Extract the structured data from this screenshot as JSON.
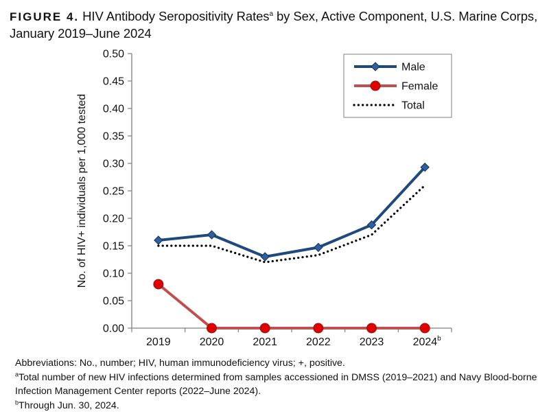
{
  "figure": {
    "label": "FIGURE 4.",
    "title": "HIV Antibody Seropositivity Rates",
    "title_sup": "a",
    "title_rest": " by Sex, Active Component, U.S. Marine Corps, January 2019–June 2024"
  },
  "chart_data": {
    "type": "line",
    "categories": [
      "2019",
      "2020",
      "2021",
      "2022",
      "2023",
      "2024"
    ],
    "category_sup": [
      "",
      "",
      "",
      "",
      "",
      "b"
    ],
    "ylabel": "No. of HIV+ individuals per 1,000 tested",
    "xlabel": "",
    "ylim": [
      0,
      0.5
    ],
    "yticks": [
      "0.00",
      "0.05",
      "0.10",
      "0.15",
      "0.20",
      "0.25",
      "0.30",
      "0.35",
      "0.40",
      "0.45",
      "0.50"
    ],
    "grid": false,
    "legend_position": "top-right",
    "series": [
      {
        "name": "Male",
        "values": [
          0.16,
          0.17,
          0.13,
          0.147,
          0.188,
          0.293
        ],
        "color": "#1f497d",
        "marker": "diamond",
        "style": "solid"
      },
      {
        "name": "Female",
        "values": [
          0.08,
          0.0,
          0.0,
          0.0,
          0.0,
          0.0
        ],
        "color": "#c0504d",
        "marker": "circle",
        "style": "solid"
      },
      {
        "name": "Total",
        "values": [
          0.15,
          0.15,
          0.12,
          0.133,
          0.17,
          0.26
        ],
        "color": "#000000",
        "marker": "none",
        "style": "dotted"
      }
    ]
  },
  "notes": {
    "abbreviations": "Abbreviations: No., number; HIV, human immunodeficiency virus; +, positive.",
    "note_a_sup": "a",
    "note_a": "Total number of new HIV infections determined from samples accessioned in DMSS (2019–2021) and Navy Blood-borne Infection Management Center reports (2022–June 2024).",
    "note_b_sup": "b",
    "note_b": "Through Jun. 30, 2024."
  }
}
